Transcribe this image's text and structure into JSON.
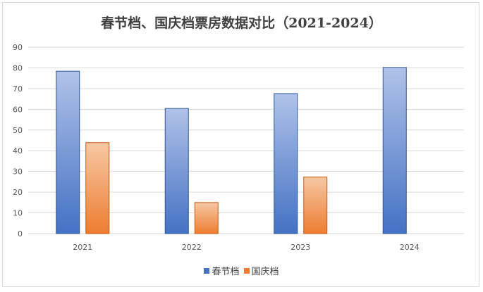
{
  "chart_data": {
    "type": "bar",
    "title": "春节档、国庆档票房数据对比（2021-2024）",
    "categories": [
      "2021",
      "2022",
      "2023",
      "2024"
    ],
    "series": [
      {
        "name": "春节档",
        "values": [
          78.4,
          60.4,
          67.6,
          80.2
        ],
        "color": "#4472c4"
      },
      {
        "name": "国庆档",
        "values": [
          43.9,
          15.0,
          27.3,
          null
        ],
        "color": "#ed7d31"
      }
    ],
    "ylim": [
      0,
      90
    ],
    "yticks": [
      "0",
      "10",
      "20",
      "30",
      "40",
      "50",
      "60",
      "70",
      "80",
      "90"
    ],
    "grid": true,
    "legend": "bottom"
  }
}
